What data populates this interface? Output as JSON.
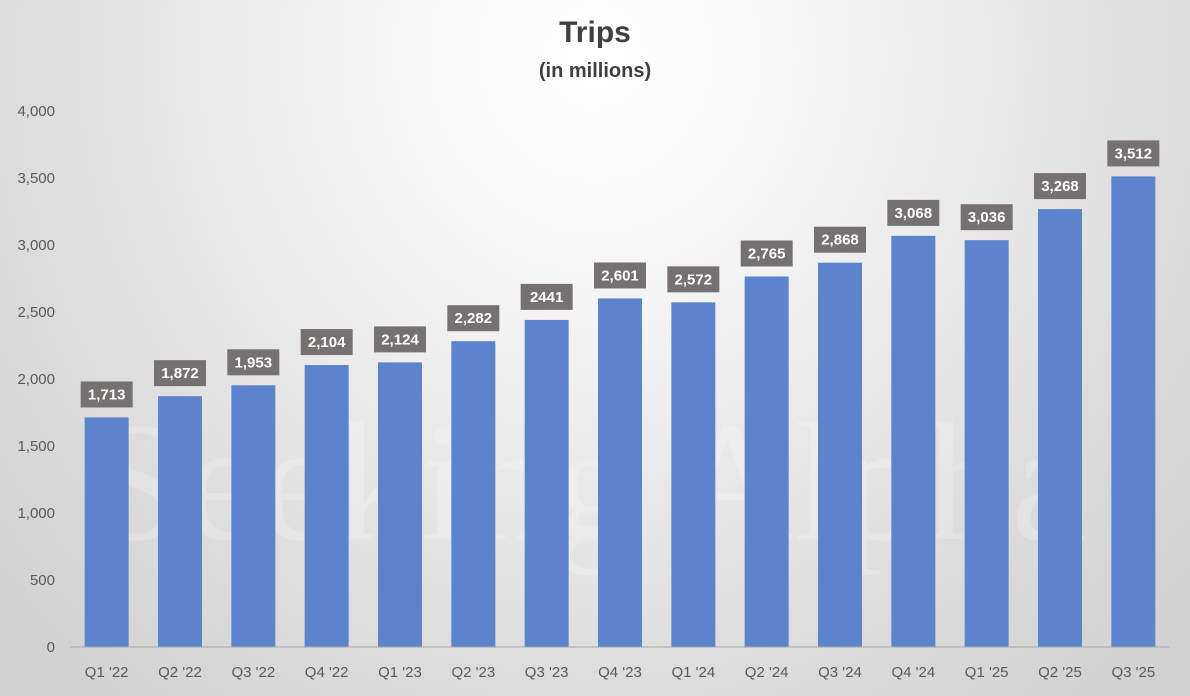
{
  "chart_data": {
    "type": "bar",
    "title": "Trips",
    "subtitle": "(in millions)",
    "xlabel": "",
    "ylabel": "",
    "categories": [
      "Q1 '22",
      "Q2 '22",
      "Q3 '22",
      "Q4 '22",
      "Q1 '23",
      "Q2 '23",
      "Q3 '23",
      "Q4 '23",
      "Q1 '24",
      "Q2 '24",
      "Q3 '24",
      "Q4 '24",
      "Q1 '25",
      "Q2 '25",
      "Q3 '25"
    ],
    "values": [
      1713,
      1872,
      1953,
      2104,
      2124,
      2282,
      2441,
      2601,
      2572,
      2765,
      2868,
      3068,
      3036,
      3268,
      3512
    ],
    "data_labels": [
      "1,713",
      "1,872",
      "1,953",
      "2,104",
      "2,124",
      "2,282",
      "2441",
      "2,601",
      "2,572",
      "2,765",
      "2,868",
      "3,068",
      "3,036",
      "3,268",
      "3,512"
    ],
    "ylim": [
      0,
      4000
    ],
    "yticks": [
      0,
      500,
      1000,
      1500,
      2000,
      2500,
      3000,
      3500,
      4000
    ],
    "ytick_labels": [
      "0",
      "500",
      "1,000",
      "1,500",
      "2,000",
      "2,500",
      "3,000",
      "3,500",
      "4,000"
    ],
    "grid": false,
    "legend": "none",
    "colors": {
      "bar": "#5b84cc",
      "label_box": "#767171",
      "label_text": "#ffffff",
      "axis_text": "#595959",
      "title": "#404040"
    }
  },
  "watermark": "Seeking Alpha"
}
